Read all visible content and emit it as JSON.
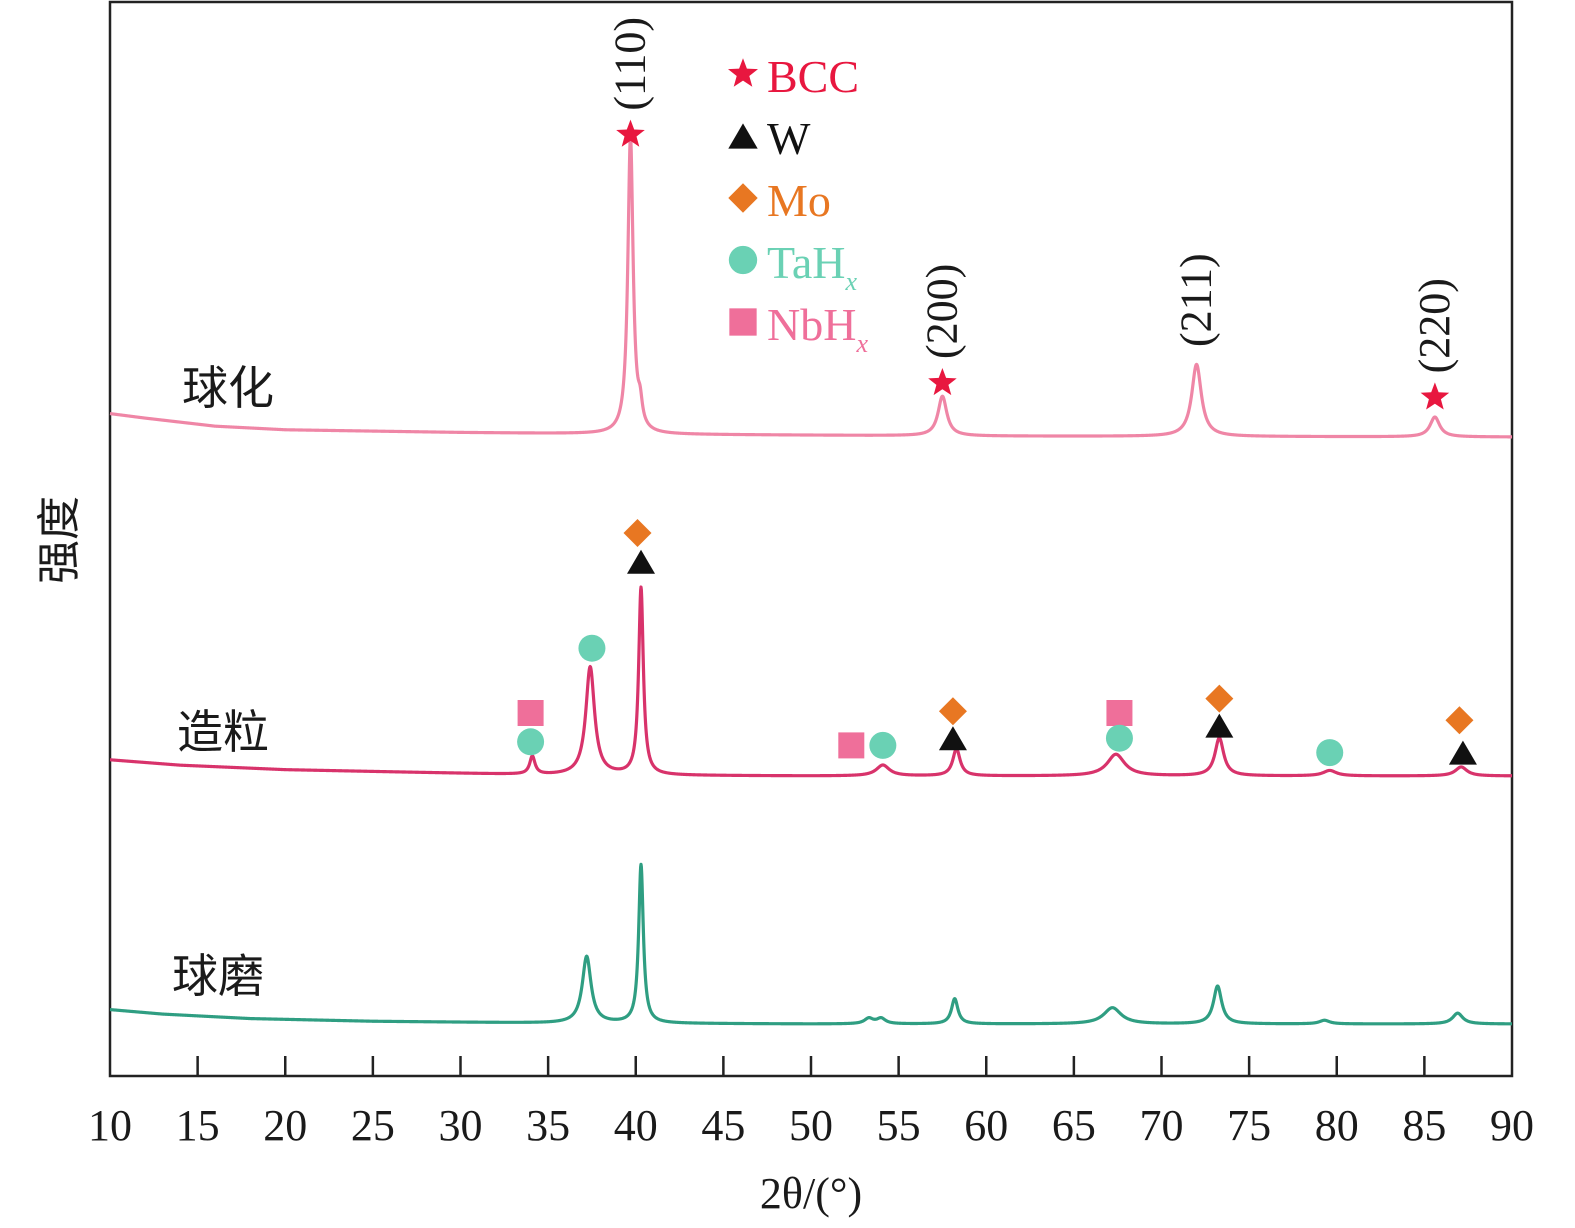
{
  "chart_data": {
    "type": "line",
    "xlabel": "2θ/(°)",
    "ylabel": "强度",
    "xlim": [
      10,
      90
    ],
    "x_ticks": [
      10,
      15,
      20,
      25,
      30,
      35,
      40,
      45,
      50,
      55,
      60,
      65,
      70,
      75,
      80,
      85,
      90
    ],
    "y_ticks": "none",
    "grid": false,
    "colors": {
      "BCC": "#e8173f",
      "W": "#111111",
      "Mo": "#e87722",
      "TaHx": "#6ad1b4",
      "NbHx": "#ef6f9a"
    },
    "legend": {
      "placement": "top-center",
      "entries": [
        {
          "id": "BCC",
          "marker": "star",
          "label": "BCC",
          "sub": ""
        },
        {
          "id": "W",
          "marker": "triangle",
          "label": "W",
          "sub": ""
        },
        {
          "id": "Mo",
          "marker": "diamond",
          "label": "Mo",
          "sub": ""
        },
        {
          "id": "TaHx",
          "marker": "circle",
          "label": "TaH",
          "sub": "x"
        },
        {
          "id": "NbHx",
          "marker": "square",
          "label": "NbH",
          "sub": "x"
        }
      ]
    },
    "series": [
      {
        "name": "球化",
        "color": "#ef86a6",
        "baseline": [
          [
            10,
            1.3
          ],
          [
            12,
            1.05
          ],
          [
            16,
            0.6
          ],
          [
            20,
            0.4
          ],
          [
            30,
            0.25
          ],
          [
            40,
            0.15
          ],
          [
            60,
            0.05
          ],
          [
            90,
            0
          ]
        ],
        "peaks": [
          {
            "x": 39.7,
            "height": 16.5,
            "width": 0.18,
            "phase": "BCC"
          },
          {
            "x": 40.25,
            "height": 1.1,
            "width": 0.15
          },
          {
            "x": 57.5,
            "height": 2.2,
            "width": 0.3,
            "phase": "BCC"
          },
          {
            "x": 72.0,
            "height": 4.0,
            "width": 0.33
          },
          {
            "x": 85.6,
            "height": 1.1,
            "width": 0.33,
            "phase": "BCC"
          }
        ],
        "hkl_labels": [
          {
            "x": 39.7,
            "text": "(110)"
          },
          {
            "x": 57.5,
            "text": "(200)"
          },
          {
            "x": 72.0,
            "text": "(211)"
          },
          {
            "x": 85.6,
            "text": "(220)"
          }
        ],
        "markers": [
          {
            "phase": "BCC",
            "x": 39.7,
            "y": 16.8
          },
          {
            "phase": "BCC",
            "x": 57.5,
            "y": 3.0
          },
          {
            "phase": "BCC",
            "x": 85.6,
            "y": 2.2
          }
        ]
      },
      {
        "name": "造粒",
        "color": "#d8336b",
        "baseline": [
          [
            10,
            0.9
          ],
          [
            14,
            0.6
          ],
          [
            20,
            0.35
          ],
          [
            30,
            0.15
          ],
          [
            35,
            0.05
          ],
          [
            50,
            0
          ],
          [
            90,
            0
          ]
        ],
        "peaks": [
          {
            "x": 34.1,
            "height": 1.0,
            "width": 0.18
          },
          {
            "x": 37.4,
            "height": 6.0,
            "width": 0.3
          },
          {
            "x": 40.3,
            "height": 10.4,
            "width": 0.16
          },
          {
            "x": 54.1,
            "height": 0.6,
            "width": 0.45
          },
          {
            "x": 58.3,
            "height": 1.5,
            "width": 0.25
          },
          {
            "x": 67.4,
            "height": 1.2,
            "width": 0.6
          },
          {
            "x": 73.3,
            "height": 2.1,
            "width": 0.3
          },
          {
            "x": 79.6,
            "height": 0.3,
            "width": 0.45
          },
          {
            "x": 87.1,
            "height": 0.5,
            "width": 0.4
          }
        ],
        "markers": [
          {
            "phase": "Mo",
            "x": 40.1,
            "y": 13.5
          },
          {
            "phase": "W",
            "x": 40.3,
            "y": 11.9
          },
          {
            "phase": "TaHx",
            "x": 37.5,
            "y": 7.1
          },
          {
            "phase": "NbHx",
            "x": 34.0,
            "y": 3.5
          },
          {
            "phase": "TaHx",
            "x": 34.0,
            "y": 1.9
          },
          {
            "phase": "NbHx",
            "x": 52.3,
            "y": 1.7
          },
          {
            "phase": "TaHx",
            "x": 54.1,
            "y": 1.7
          },
          {
            "phase": "Mo",
            "x": 58.1,
            "y": 3.6
          },
          {
            "phase": "W",
            "x": 58.1,
            "y": 2.1
          },
          {
            "phase": "NbHx",
            "x": 67.6,
            "y": 3.5
          },
          {
            "phase": "TaHx",
            "x": 67.6,
            "y": 2.1
          },
          {
            "phase": "Mo",
            "x": 73.3,
            "y": 4.3
          },
          {
            "phase": "W",
            "x": 73.3,
            "y": 2.8
          },
          {
            "phase": "TaHx",
            "x": 79.6,
            "y": 1.3
          },
          {
            "phase": "Mo",
            "x": 87.0,
            "y": 3.1
          },
          {
            "phase": "W",
            "x": 87.2,
            "y": 1.3
          }
        ]
      },
      {
        "name": "球磨",
        "color": "#2f9e82",
        "baseline": [
          [
            10,
            0.8
          ],
          [
            13,
            0.55
          ],
          [
            18,
            0.3
          ],
          [
            25,
            0.15
          ],
          [
            35,
            0.05
          ],
          [
            50,
            0
          ],
          [
            90,
            0
          ]
        ],
        "peaks": [
          {
            "x": 37.2,
            "height": 3.7,
            "width": 0.3
          },
          {
            "x": 40.3,
            "height": 8.8,
            "width": 0.16
          },
          {
            "x": 53.3,
            "height": 0.3,
            "width": 0.3
          },
          {
            "x": 54.0,
            "height": 0.3,
            "width": 0.3
          },
          {
            "x": 58.2,
            "height": 1.4,
            "width": 0.22
          },
          {
            "x": 67.2,
            "height": 0.9,
            "width": 0.6
          },
          {
            "x": 73.2,
            "height": 2.1,
            "width": 0.28
          },
          {
            "x": 79.3,
            "height": 0.2,
            "width": 0.35
          },
          {
            "x": 86.9,
            "height": 0.6,
            "width": 0.35
          }
        ]
      }
    ]
  }
}
